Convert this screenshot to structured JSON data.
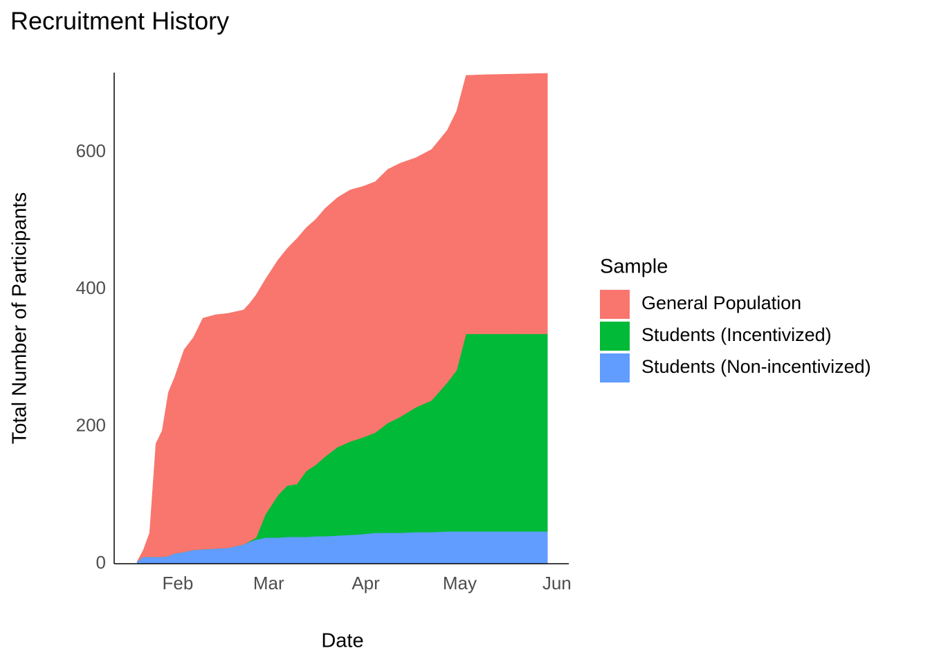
{
  "chart_data": {
    "type": "area",
    "stacked": true,
    "title": "Recruitment History",
    "x_label": "Date",
    "y_label": "Total Number of Participants",
    "legend_title": "Sample",
    "legend_position": "right",
    "grid": false,
    "x": [
      19,
      21,
      23,
      25,
      27,
      29,
      31,
      34,
      37,
      40,
      44,
      48,
      53,
      55,
      57,
      60,
      64,
      67,
      70,
      73,
      76,
      79,
      83,
      87,
      91,
      95,
      99,
      103,
      108,
      113,
      118,
      121,
      124,
      130,
      140,
      150
    ],
    "series": [
      {
        "name": "General Population",
        "color": "#F8766D",
        "values": [
          0,
          10,
          35,
          165,
          184,
          239,
          257,
          295,
          310,
          337,
          341,
          342,
          342,
          347,
          354,
          343,
          343,
          346,
          358,
          355,
          358,
          362,
          364,
          367,
          366,
          366,
          370,
          370,
          364,
          366,
          368,
          378,
          377,
          378,
          379,
          380
        ]
      },
      {
        "name": "Students (Incentivized)",
        "color": "#00BA38",
        "values": [
          0,
          0,
          0,
          0,
          0,
          0,
          0,
          0,
          0,
          0,
          0,
          0,
          0,
          1,
          3,
          34,
          62,
          75,
          77,
          96,
          104,
          116,
          129,
          136,
          141,
          146,
          160,
          169,
          182,
          192,
          217,
          235,
          288,
          288,
          288,
          288
        ]
      },
      {
        "name": "Students (Non-incentivized)",
        "color": "#619CFF",
        "values": [
          3,
          10,
          10,
          10,
          10,
          11,
          15,
          17,
          20,
          21,
          22,
          23,
          28,
          32,
          35,
          38,
          38,
          39,
          39,
          39,
          40,
          40,
          41,
          42,
          43,
          45,
          45,
          45,
          46,
          46,
          47,
          47,
          47,
          47,
          47,
          47
        ]
      }
    ],
    "xlim": [
      11.7,
      156.8
    ],
    "xticks": [
      {
        "value": 32,
        "label": "Feb"
      },
      {
        "value": 61,
        "label": "Mar"
      },
      {
        "value": 92,
        "label": "Apr"
      },
      {
        "value": 122,
        "label": "May"
      },
      {
        "value": 153,
        "label": "Jun"
      }
    ],
    "ylim": [
      0,
      716
    ],
    "yticks": [
      0,
      200,
      400,
      600
    ]
  }
}
